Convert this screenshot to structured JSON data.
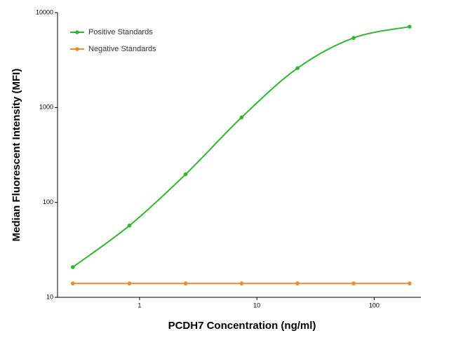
{
  "chart_data": {
    "type": "line",
    "x_label": "PCDH7 Concentration (ng/ml)",
    "y_label": "Median  Fluorescent Intensity  (MFI)",
    "x": [
      0.27,
      0.82,
      2.47,
      7.41,
      22.2,
      66.7,
      200
    ],
    "series": [
      {
        "name": "Positive Standards",
        "color": "#2fb82f",
        "values": [
          20.8,
          57,
          198,
          787,
          2600,
          5410,
          7110
        ]
      },
      {
        "name": "Negative Standards",
        "color": "#f0892a",
        "values": [
          14,
          14,
          14,
          14,
          14,
          14,
          14
        ]
      }
    ],
    "xscale": "log",
    "yscale": "log",
    "xlim": [
      0.2,
      250
    ],
    "ylim": [
      10,
      10000
    ],
    "xticks": [
      1,
      10,
      100
    ],
    "yticks": [
      10,
      100,
      1000,
      10000
    ],
    "legend": "upper-left",
    "grid": false
  }
}
